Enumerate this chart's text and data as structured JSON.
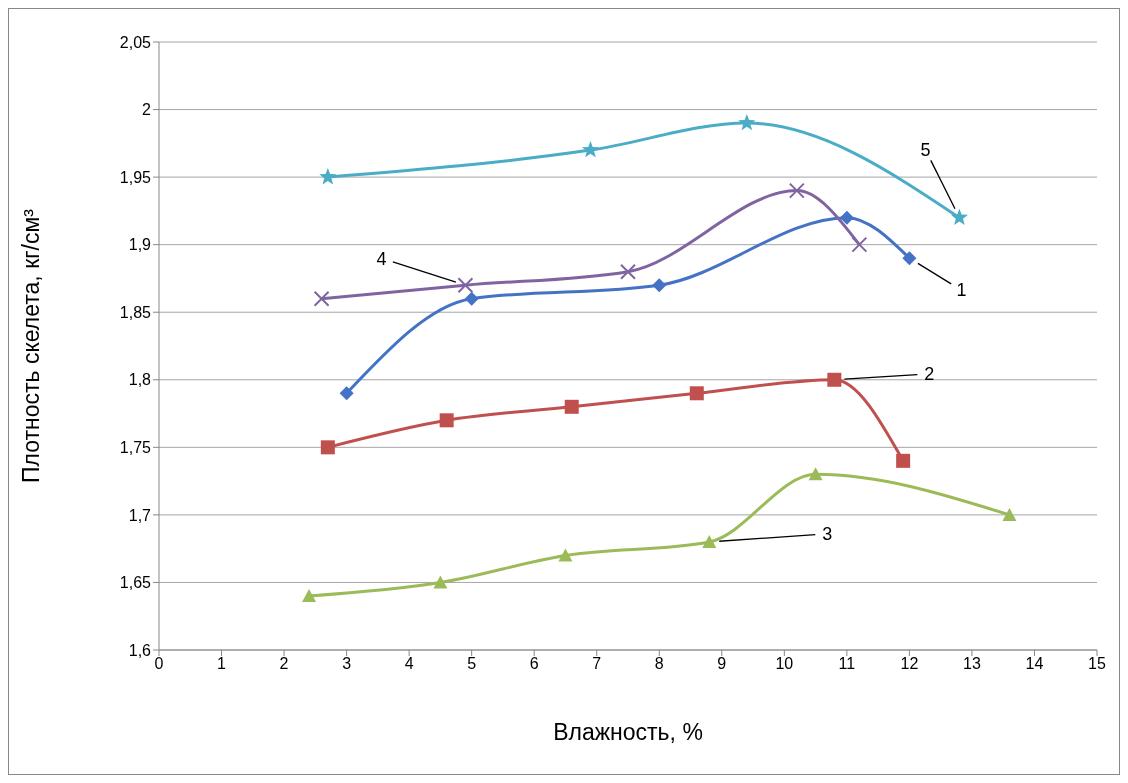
{
  "chart_data": {
    "type": "line",
    "xlabel": "Влажность, %",
    "ylabel": "Плотность скелета, кг/см³",
    "xlim": [
      0,
      15
    ],
    "xticks": [
      0,
      1,
      2,
      3,
      4,
      5,
      6,
      7,
      8,
      9,
      10,
      11,
      12,
      13,
      14,
      15
    ],
    "ylim": [
      1.6,
      2.05
    ],
    "yticks": [
      {
        "value": 1.6,
        "label": "1,6"
      },
      {
        "value": 1.65,
        "label": "1,65"
      },
      {
        "value": 1.7,
        "label": "1,7"
      },
      {
        "value": 1.75,
        "label": "1,75"
      },
      {
        "value": 1.8,
        "label": "1,8"
      },
      {
        "value": 1.85,
        "label": "1,85"
      },
      {
        "value": 1.9,
        "label": "1,9"
      },
      {
        "value": 1.95,
        "label": "1,95"
      },
      {
        "value": 2,
        "label": "2"
      },
      {
        "value": 2.05,
        "label": "2,05"
      }
    ],
    "grid": "y",
    "legend": false,
    "line_style": "solid",
    "series": [
      {
        "name": "1",
        "color": "#4472c4",
        "marker": "diamond",
        "x": [
          3,
          5,
          8,
          11,
          12
        ],
        "values": [
          1.79,
          1.86,
          1.87,
          1.92,
          1.89
        ]
      },
      {
        "name": "2",
        "color": "#c0504d",
        "marker": "square",
        "x": [
          2.7,
          4.6,
          6.6,
          8.6,
          10.8,
          11.9
        ],
        "values": [
          1.75,
          1.77,
          1.78,
          1.79,
          1.8,
          1.74
        ]
      },
      {
        "name": "3",
        "color": "#9bbb59",
        "marker": "triangle",
        "x": [
          2.4,
          4.5,
          6.5,
          8.8,
          10.5,
          13.6
        ],
        "values": [
          1.64,
          1.65,
          1.67,
          1.68,
          1.73,
          1.7
        ]
      },
      {
        "name": "4",
        "color": "#8064a2",
        "marker": "cross",
        "x": [
          2.6,
          4.9,
          7.5,
          10.2,
          11.2
        ],
        "values": [
          1.86,
          1.87,
          1.88,
          1.94,
          1.9
        ]
      },
      {
        "name": "5",
        "color": "#4bacc6",
        "marker": "star",
        "x": [
          2.7,
          6.9,
          9.4,
          12.8
        ],
        "values": [
          1.95,
          1.97,
          1.99,
          1.92
        ]
      }
    ]
  }
}
